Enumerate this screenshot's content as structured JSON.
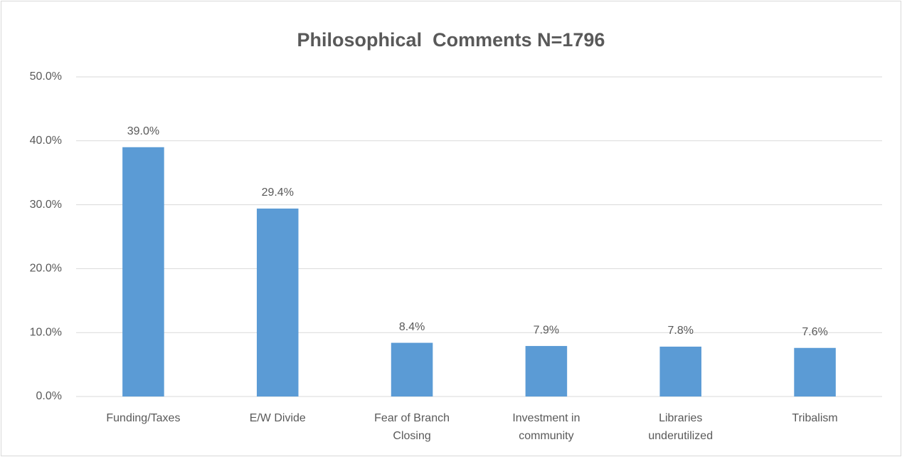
{
  "chart_data": {
    "type": "bar",
    "title": "Philosophical  Comments N=1796",
    "categories": [
      "Funding/Taxes",
      "E/W Divide",
      "Fear of Branch Closing",
      "Investment in community",
      "Libraries underutilized",
      "Tribalism"
    ],
    "values": [
      39.0,
      29.4,
      8.4,
      7.9,
      7.8,
      7.6
    ],
    "value_labels": [
      "39.0%",
      "29.4%",
      "8.4%",
      "7.9%",
      "7.8%",
      "7.6%"
    ],
    "color": "#5b9bd5",
    "ylim": [
      0,
      50
    ],
    "yticks": [
      {
        "value": 0,
        "label": "0.0%"
      },
      {
        "value": 10,
        "label": "10.0%"
      },
      {
        "value": 20,
        "label": "20.0%"
      },
      {
        "value": 30,
        "label": "30.0%"
      },
      {
        "value": 40,
        "label": "40.0%"
      },
      {
        "value": 50,
        "label": "50.0%"
      }
    ],
    "grid": true
  }
}
